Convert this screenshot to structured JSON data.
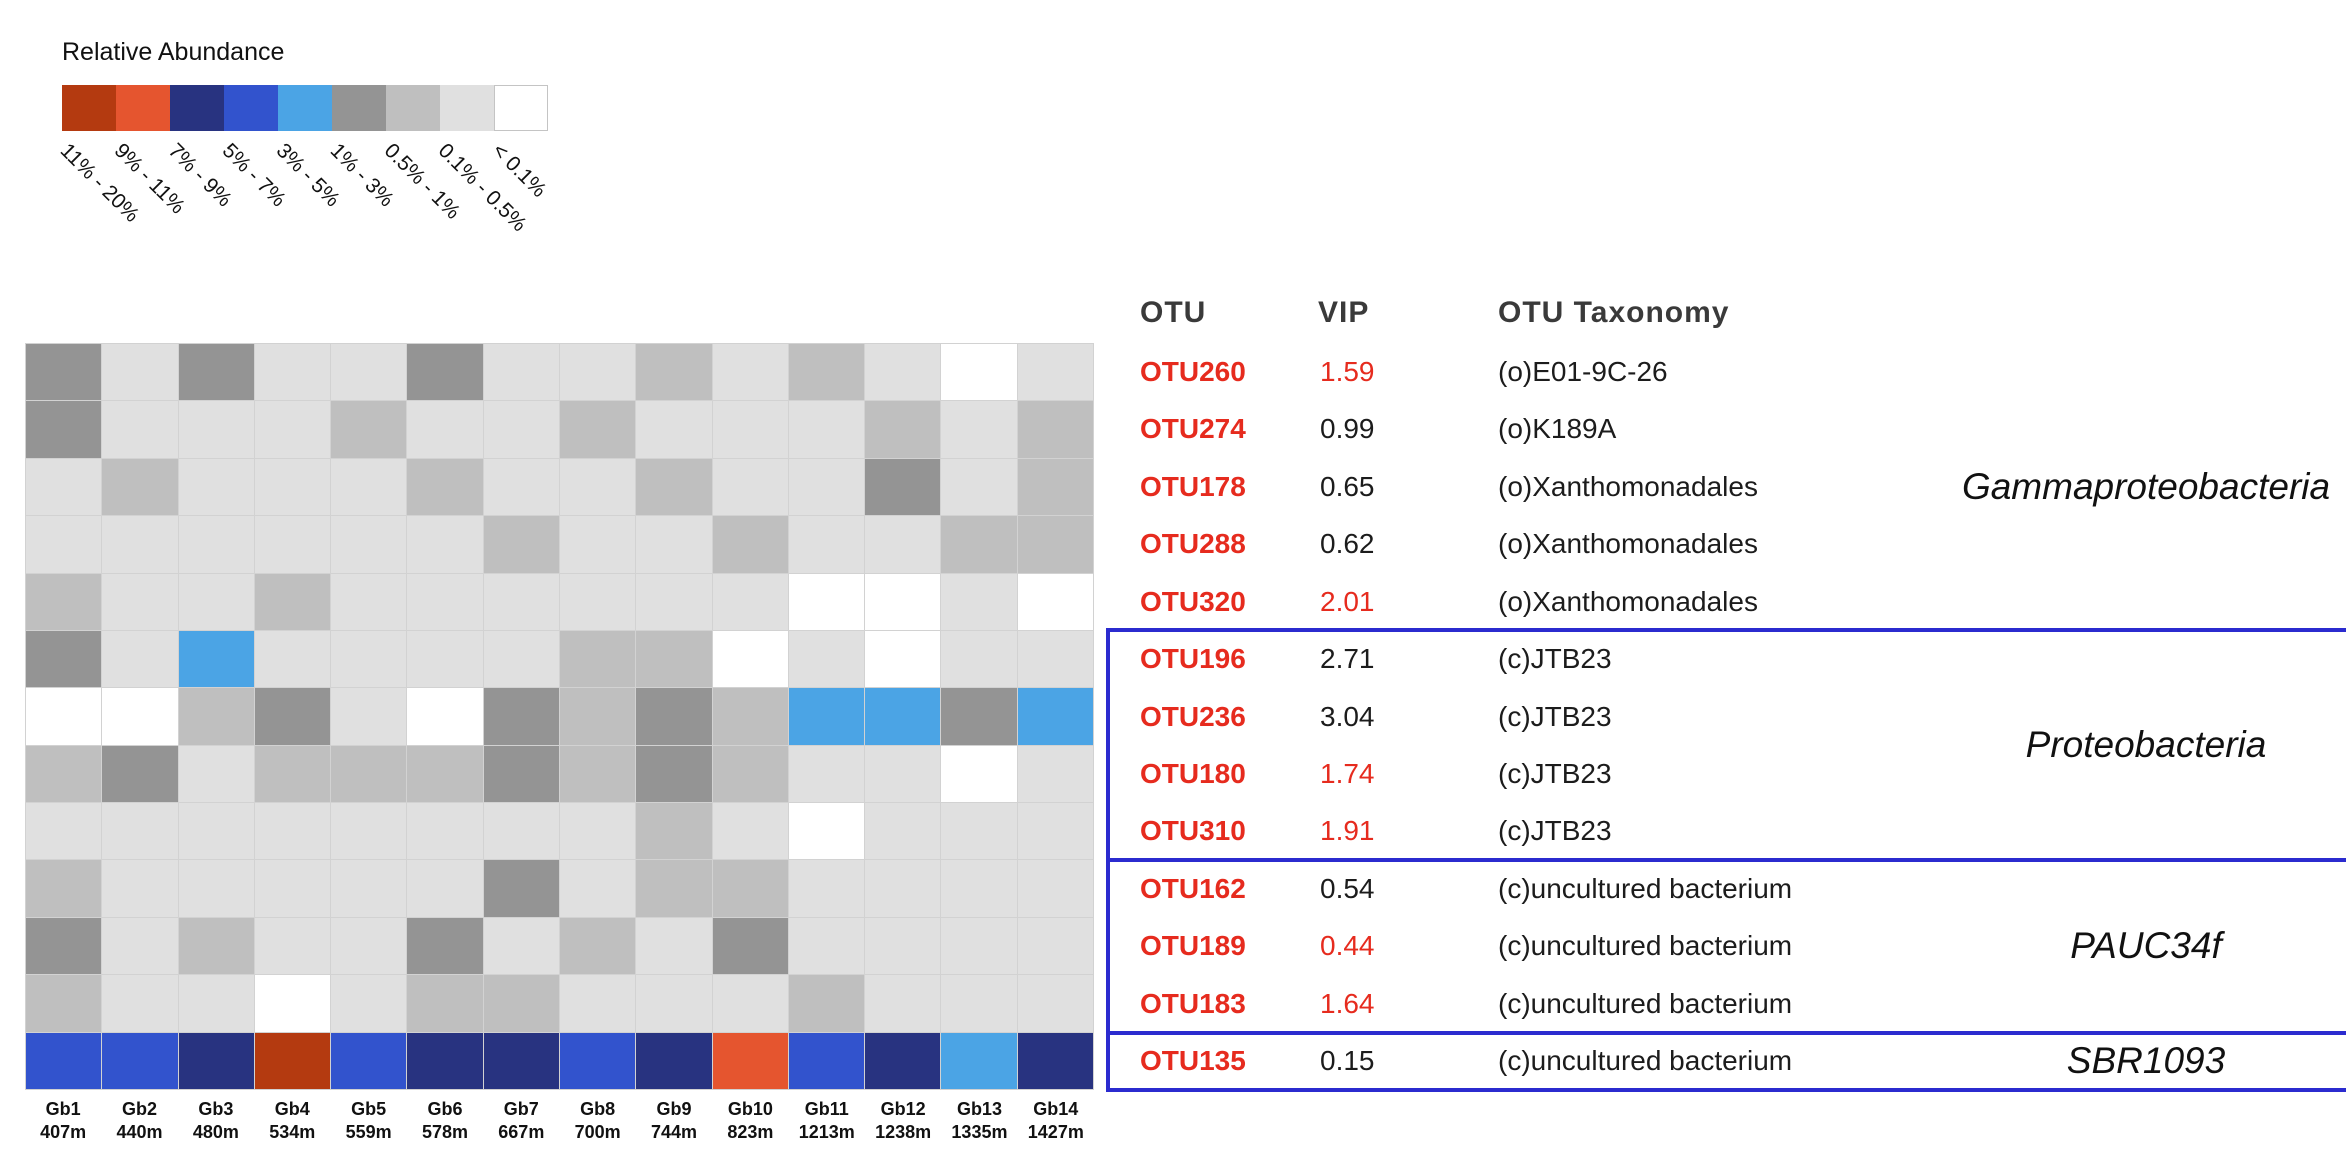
{
  "legend": {
    "title": "Relative Abundance",
    "bins": [
      {
        "code": "R2",
        "label": "11% - 20%"
      },
      {
        "code": "R1",
        "label": "9% - 11%"
      },
      {
        "code": "B3",
        "label": "7% - 9%"
      },
      {
        "code": "B2",
        "label": "5% - 7%"
      },
      {
        "code": "B1",
        "label": "3% - 5%"
      },
      {
        "code": "G3",
        "label": "1% - 3%"
      },
      {
        "code": "G2",
        "label": "0.5% - 1%"
      },
      {
        "code": "G1",
        "label": "0.1% - 0.5%"
      },
      {
        "code": "W",
        "label": "< 0.1%"
      }
    ]
  },
  "palette": {
    "R2": "#b43a10",
    "R1": "#e5552f",
    "B3": "#283380",
    "B2": "#3253cd",
    "B1": "#4ba4e5",
    "G3": "#949494",
    "G2": "#bfbfbf",
    "G1": "#e0e0e0",
    "W": "#ffffff"
  },
  "chart_data": {
    "type": "heatmap",
    "title": "Relative Abundance",
    "x_categories": [
      "Gb1",
      "Gb2",
      "Gb3",
      "Gb4",
      "Gb5",
      "Gb6",
      "Gb7",
      "Gb8",
      "Gb9",
      "Gb10",
      "Gb11",
      "Gb12",
      "Gb13",
      "Gb14"
    ],
    "x_sublabels": [
      "407m",
      "440m",
      "480m",
      "534m",
      "559m",
      "578m",
      "667m",
      "700m",
      "744m",
      "823m",
      "1213m",
      "1238m",
      "1335m",
      "1427m"
    ],
    "y_categories": [
      "OTU260",
      "OTU274",
      "OTU178",
      "OTU288",
      "OTU320",
      "OTU196",
      "OTU236",
      "OTU180",
      "OTU310",
      "OTU162",
      "OTU189",
      "OTU183",
      "OTU135"
    ],
    "bin_scale": {
      "W": "< 0.1%",
      "G1": "0.1% - 0.5%",
      "G2": "0.5% - 1%",
      "G3": "1% - 3%",
      "B1": "3% - 5%",
      "B2": "5% - 7%",
      "B3": "7% - 9%",
      "R1": "9% - 11%",
      "R2": "11% - 20%"
    },
    "cells": [
      [
        "G3",
        "G1",
        "G3",
        "G1",
        "G1",
        "G3",
        "G1",
        "G1",
        "G2",
        "G1",
        "G2",
        "G1",
        "W",
        "G1"
      ],
      [
        "G3",
        "G1",
        "G1",
        "G1",
        "G2",
        "G1",
        "G1",
        "G2",
        "G1",
        "G1",
        "G1",
        "G2",
        "G1",
        "G2"
      ],
      [
        "G1",
        "G2",
        "G1",
        "G1",
        "G1",
        "G2",
        "G1",
        "G1",
        "G2",
        "G1",
        "G1",
        "G3",
        "G1",
        "G2"
      ],
      [
        "G1",
        "G1",
        "G1",
        "G1",
        "G1",
        "G1",
        "G2",
        "G1",
        "G1",
        "G2",
        "G1",
        "G1",
        "G2",
        "G2"
      ],
      [
        "G2",
        "G1",
        "G1",
        "G2",
        "G1",
        "G1",
        "G1",
        "G1",
        "G1",
        "G1",
        "W",
        "W",
        "G1",
        "W"
      ],
      [
        "G3",
        "G1",
        "B1",
        "G1",
        "G1",
        "G1",
        "G1",
        "G2",
        "G2",
        "W",
        "G1",
        "W",
        "G1",
        "G1"
      ],
      [
        "W",
        "W",
        "G2",
        "G3",
        "G1",
        "W",
        "G3",
        "G2",
        "G3",
        "G2",
        "B1",
        "B1",
        "G3",
        "B1"
      ],
      [
        "G2",
        "G3",
        "G1",
        "G2",
        "G2",
        "G2",
        "G3",
        "G2",
        "G3",
        "G2",
        "G1",
        "G1",
        "W",
        "G1"
      ],
      [
        "G1",
        "G1",
        "G1",
        "G1",
        "G1",
        "G1",
        "G1",
        "G1",
        "G2",
        "G1",
        "W",
        "G1",
        "G1",
        "G1"
      ],
      [
        "G2",
        "G1",
        "G1",
        "G1",
        "G1",
        "G1",
        "G3",
        "G1",
        "G2",
        "G2",
        "G1",
        "G1",
        "G1",
        "G1"
      ],
      [
        "G3",
        "G1",
        "G2",
        "G1",
        "G1",
        "G3",
        "G1",
        "G2",
        "G1",
        "G3",
        "G1",
        "G1",
        "G1",
        "G1"
      ],
      [
        "G2",
        "G1",
        "G1",
        "W",
        "G1",
        "G2",
        "G2",
        "G1",
        "G1",
        "G1",
        "G2",
        "G1",
        "G1",
        "G1"
      ],
      [
        "B2",
        "B2",
        "B3",
        "R2",
        "B2",
        "B3",
        "B3",
        "B2",
        "B3",
        "R1",
        "B2",
        "B3",
        "B1",
        "B3"
      ]
    ]
  },
  "samples": [
    {
      "name": "Gb1",
      "depth": "407m"
    },
    {
      "name": "Gb2",
      "depth": "440m"
    },
    {
      "name": "Gb3",
      "depth": "480m"
    },
    {
      "name": "Gb4",
      "depth": "534m"
    },
    {
      "name": "Gb5",
      "depth": "559m"
    },
    {
      "name": "Gb6",
      "depth": "578m"
    },
    {
      "name": "Gb7",
      "depth": "667m"
    },
    {
      "name": "Gb8",
      "depth": "700m"
    },
    {
      "name": "Gb9",
      "depth": "744m"
    },
    {
      "name": "Gb10",
      "depth": "823m"
    },
    {
      "name": "Gb11",
      "depth": "1213m"
    },
    {
      "name": "Gb12",
      "depth": "1238m"
    },
    {
      "name": "Gb13",
      "depth": "1335m"
    },
    {
      "name": "Gb14",
      "depth": "1427m"
    }
  ],
  "table": {
    "headers": {
      "otu": "OTU",
      "vip": "VIP",
      "taxonomy": "OTU Taxonomy"
    },
    "rows": [
      {
        "otu": "OTU260",
        "vip": "1.59",
        "vip_color": "red",
        "taxonomy": "(o)E01-9C-26"
      },
      {
        "otu": "OTU274",
        "vip": "0.99",
        "vip_color": "black",
        "taxonomy": "(o)K189A"
      },
      {
        "otu": "OTU178",
        "vip": "0.65",
        "vip_color": "black",
        "taxonomy": "(o)Xanthomonadales"
      },
      {
        "otu": "OTU288",
        "vip": "0.62",
        "vip_color": "black",
        "taxonomy": "(o)Xanthomonadales"
      },
      {
        "otu": "OTU320",
        "vip": "2.01",
        "vip_color": "red",
        "taxonomy": "(o)Xanthomonadales"
      },
      {
        "otu": "OTU196",
        "vip": "2.71",
        "vip_color": "black",
        "taxonomy": "(c)JTB23"
      },
      {
        "otu": "OTU236",
        "vip": "3.04",
        "vip_color": "black",
        "taxonomy": "(c)JTB23"
      },
      {
        "otu": "OTU180",
        "vip": "1.74",
        "vip_color": "red",
        "taxonomy": "(c)JTB23"
      },
      {
        "otu": "OTU310",
        "vip": "1.91",
        "vip_color": "red",
        "taxonomy": "(c)JTB23"
      },
      {
        "otu": "OTU162",
        "vip": "0.54",
        "vip_color": "black",
        "taxonomy": "(c)uncultured bacterium"
      },
      {
        "otu": "OTU189",
        "vip": "0.44",
        "vip_color": "red",
        "taxonomy": "(c)uncultured bacterium"
      },
      {
        "otu": "OTU183",
        "vip": "1.64",
        "vip_color": "red",
        "taxonomy": "(c)uncultured bacterium"
      },
      {
        "otu": "OTU135",
        "vip": "0.15",
        "vip_color": "black",
        "taxonomy": "(c)uncultured bacterium"
      }
    ],
    "groups": [
      {
        "label": "Gammaproteobacteria",
        "row_count": 5
      },
      {
        "label": "Proteobacteria",
        "row_count": 4
      },
      {
        "label": "PAUC34f",
        "row_count": 3
      },
      {
        "label": "SBR1093",
        "row_count": 1
      }
    ]
  },
  "colors": {
    "otu_id_red": "#e62b1e",
    "text_black": "#1c1c1c",
    "header_gray": "#3a3a3a",
    "separator_blue": "#2b2bcf",
    "grid_line": "#d2d2d2"
  }
}
